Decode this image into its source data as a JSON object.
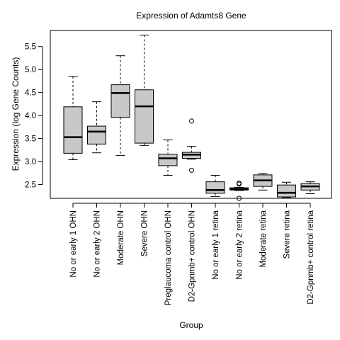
{
  "chart_data": {
    "type": "box",
    "title": "Expression of  Adamts8 Gene",
    "xlabel": "Group",
    "ylabel": "Expression (log Gene Counts)",
    "ylim": [
      2.2,
      5.85
    ],
    "yticks": [
      "2.5",
      "3.0",
      "3.5",
      "4.0",
      "4.5",
      "5.0",
      "5.5"
    ],
    "box_fill": "#c8c8c8",
    "categories": [
      "No or early 1 OHN",
      "No or early 2 OHN",
      "Moderate OHN",
      "Severe OHN",
      "Preglaucoma control OHN",
      "D2-Gpnmb+ control OHN",
      "No or early 1 retina",
      "No or early 2 retina",
      "Moderate retina",
      "Severe retina",
      "D2-Gpnmb+ control retina"
    ],
    "boxes": [
      {
        "min": 3.04,
        "q1": 3.18,
        "median": 3.53,
        "q3": 4.19,
        "max": 4.85,
        "outliers": []
      },
      {
        "min": 3.19,
        "q1": 3.38,
        "median": 3.65,
        "q3": 3.77,
        "max": 4.3,
        "outliers": []
      },
      {
        "min": 3.13,
        "q1": 3.96,
        "median": 4.49,
        "q3": 4.67,
        "max": 5.3,
        "outliers": []
      },
      {
        "min": 3.35,
        "q1": 3.4,
        "median": 4.2,
        "q3": 4.56,
        "max": 5.75,
        "outliers": []
      },
      {
        "min": 2.7,
        "q1": 2.91,
        "median": 3.07,
        "q3": 3.16,
        "max": 3.47,
        "outliers": []
      },
      {
        "min": 3.05,
        "q1": 3.07,
        "median": 3.15,
        "q3": 3.2,
        "max": 3.33,
        "outliers": [
          3.88,
          2.81
        ]
      },
      {
        "min": 2.24,
        "q1": 2.31,
        "median": 2.38,
        "q3": 2.56,
        "max": 2.7,
        "outliers": []
      },
      {
        "min": 2.37,
        "q1": 2.38,
        "median": 2.4,
        "q3": 2.43,
        "max": 2.44,
        "outliers": [
          2.53,
          2.51,
          2.2
        ]
      },
      {
        "min": 2.38,
        "q1": 2.46,
        "median": 2.59,
        "q3": 2.71,
        "max": 2.74,
        "outliers": []
      },
      {
        "min": 2.22,
        "q1": 2.23,
        "median": 2.32,
        "q3": 2.49,
        "max": 2.55,
        "outliers": []
      },
      {
        "min": 2.3,
        "q1": 2.38,
        "median": 2.46,
        "q3": 2.52,
        "max": 2.56,
        "outliers": []
      }
    ]
  }
}
